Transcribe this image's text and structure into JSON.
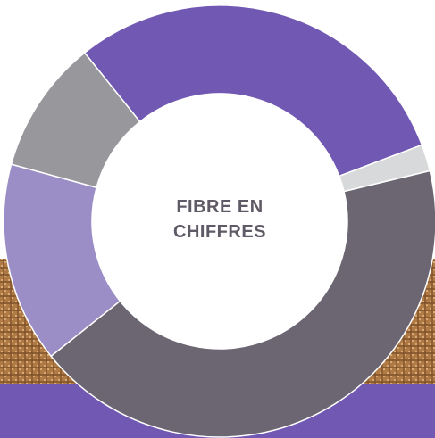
{
  "chart_data": {
    "type": "donut",
    "title": "FIBRE EN CHIFFRES",
    "values": [
      30,
      2,
      43,
      15,
      10
    ],
    "colors": [
      "#7158b3",
      "#d8d9db",
      "#6b6672",
      "#9b8ec6",
      "#98979c"
    ]
  }
}
